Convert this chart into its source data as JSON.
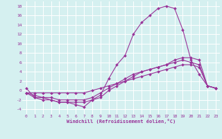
{
  "xlabel": "Windchill (Refroidissement éolien,°C)",
  "background_color": "#d5f0f0",
  "grid_color": "#ffffff",
  "line_color": "#993399",
  "x_ticks": [
    0,
    1,
    2,
    3,
    4,
    5,
    6,
    7,
    8,
    9,
    10,
    11,
    12,
    13,
    14,
    15,
    16,
    17,
    18,
    19,
    20,
    21,
    22,
    23
  ],
  "y_ticks": [
    -4,
    -2,
    0,
    2,
    4,
    6,
    8,
    10,
    12,
    14,
    16,
    18
  ],
  "ylim": [
    -5,
    19
  ],
  "xlim": [
    -0.5,
    23.5
  ],
  "line1_x": [
    0,
    1,
    2,
    3,
    4,
    5,
    6,
    7,
    8,
    9,
    10,
    11,
    12,
    13,
    14,
    15,
    16,
    17,
    18,
    19,
    20,
    21,
    22,
    23
  ],
  "line1_y": [
    0.5,
    -1.5,
    -1.5,
    -2,
    -2.5,
    -2.5,
    -3,
    -3.5,
    -2,
    -1,
    2.5,
    5.5,
    7.5,
    12,
    14.5,
    16,
    17.5,
    18,
    17.5,
    13,
    6.5,
    3.5,
    1,
    0.5
  ],
  "line2_x": [
    0,
    1,
    2,
    3,
    4,
    5,
    6,
    7,
    8,
    9,
    10,
    11,
    12,
    13,
    14,
    15,
    16,
    17,
    18,
    19,
    20,
    21,
    22,
    23
  ],
  "line2_y": [
    -0.5,
    -1.5,
    -2,
    -2,
    -2.5,
    -2.5,
    -2.5,
    -2.5,
    -2,
    -1.5,
    0,
    1,
    2,
    3,
    4,
    4.5,
    5,
    5.5,
    6.5,
    7,
    7,
    6.5,
    1,
    0.5
  ],
  "line3_x": [
    0,
    1,
    2,
    3,
    4,
    5,
    6,
    7,
    8,
    9,
    10,
    11,
    12,
    13,
    14,
    15,
    16,
    17,
    18,
    19,
    20,
    21,
    22,
    23
  ],
  "line3_y": [
    -0.5,
    -1,
    -1.5,
    -1.5,
    -2,
    -2,
    -2,
    -2,
    -1.5,
    -0.5,
    0.5,
    1.5,
    2.5,
    3.5,
    4,
    4.5,
    5,
    5.5,
    6,
    6.5,
    6,
    5.5,
    1,
    0.5
  ],
  "line4_x": [
    0,
    1,
    2,
    3,
    4,
    5,
    6,
    7,
    8,
    9,
    10,
    11,
    12,
    13,
    14,
    15,
    16,
    17,
    18,
    19,
    20,
    21,
    22,
    23
  ],
  "line4_y": [
    -0.5,
    -0.5,
    -0.5,
    -0.5,
    -0.5,
    -0.5,
    -0.5,
    -0.5,
    0,
    0.5,
    1,
    1.5,
    2,
    2.5,
    3,
    3.5,
    4,
    4.5,
    5,
    5.5,
    5.5,
    5,
    1,
    0.5
  ],
  "marker": "D",
  "markersize": 2,
  "linewidth": 0.8
}
